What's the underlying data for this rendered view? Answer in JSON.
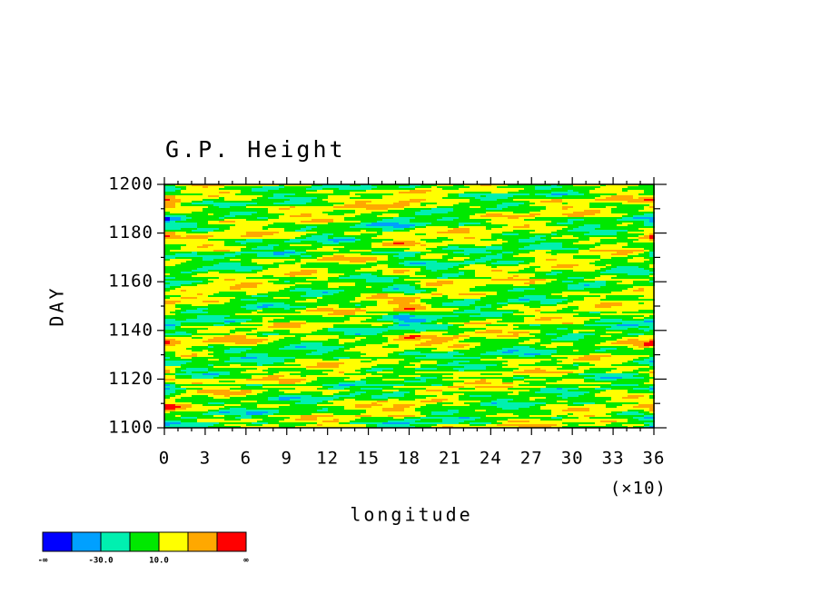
{
  "chart_data": {
    "type": "heatmap",
    "title": "G.P. Height",
    "xlabel": "longitude",
    "xscale_note": "(×10)",
    "ylabel": "DAY",
    "xlim": [
      0,
      36
    ],
    "xticks": [
      0,
      3,
      6,
      9,
      12,
      15,
      18,
      21,
      24,
      27,
      30,
      33,
      36
    ],
    "ylim": [
      1100,
      1200
    ],
    "yticks": [
      1100,
      1120,
      1140,
      1160,
      1180,
      1200
    ],
    "colorbar": {
      "colors": [
        "#0000ff",
        "#00a0ff",
        "#00f0b0",
        "#00e800",
        "#ffff00",
        "#ffa800",
        "#ff0000"
      ],
      "labels": [
        "-∞",
        null,
        "-30.0",
        null,
        "10.0",
        null,
        null,
        "∞"
      ]
    }
  }
}
